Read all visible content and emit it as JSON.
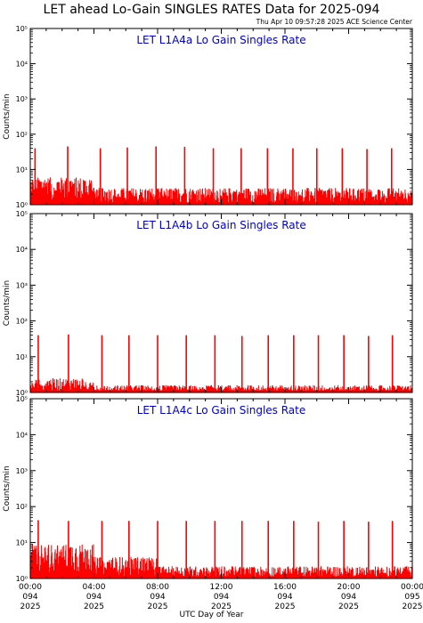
{
  "title": "LET ahead Lo-Gain SINGLES RATES Data for 2025-094",
  "timestamp": "Thu Apr 10 09:57:28 2025 ACE Science Center",
  "colors": {
    "data": "#ff0000",
    "panel_title": "#0000cc",
    "axis": "#000000"
  },
  "chart_data": [
    {
      "type": "line",
      "title": "LET L1A4a Lo Gain Singles Rate",
      "xlabel": "UTC Day of Year",
      "ylabel": "Counts/min",
      "yscale": "log",
      "ylim": [
        1,
        100000
      ],
      "xlim": [
        0,
        24
      ],
      "grid": false,
      "baseline": 1,
      "spikes": [
        {
          "t": 0.3,
          "peak": 40
        },
        {
          "t": 2.35,
          "peak": 45
        },
        {
          "t": 4.4,
          "peak": 40
        },
        {
          "t": 6.1,
          "peak": 42
        },
        {
          "t": 7.9,
          "peak": 45
        },
        {
          "t": 9.7,
          "peak": 44
        },
        {
          "t": 11.5,
          "peak": 40
        },
        {
          "t": 13.25,
          "peak": 40
        },
        {
          "t": 14.9,
          "peak": 40
        },
        {
          "t": 16.5,
          "peak": 40
        },
        {
          "t": 18.0,
          "peak": 40
        },
        {
          "t": 19.6,
          "peak": 40
        },
        {
          "t": 21.15,
          "peak": 38
        },
        {
          "t": 22.7,
          "peak": 40
        }
      ]
    },
    {
      "type": "line",
      "title": "LET L1A4b Lo Gain Singles Rate",
      "xlabel": "UTC Day of Year",
      "ylabel": "Counts/min",
      "yscale": "log",
      "ylim": [
        1,
        100000
      ],
      "xlim": [
        0,
        24
      ],
      "grid": false,
      "baseline": 1,
      "spikes": [
        {
          "t": 0.5,
          "peak": 40
        },
        {
          "t": 2.4,
          "peak": 42
        },
        {
          "t": 4.5,
          "peak": 40
        },
        {
          "t": 6.2,
          "peak": 40
        },
        {
          "t": 8.0,
          "peak": 40
        },
        {
          "t": 9.8,
          "peak": 40
        },
        {
          "t": 11.6,
          "peak": 40
        },
        {
          "t": 13.3,
          "peak": 38
        },
        {
          "t": 14.95,
          "peak": 40
        },
        {
          "t": 16.55,
          "peak": 40
        },
        {
          "t": 18.1,
          "peak": 40
        },
        {
          "t": 19.7,
          "peak": 40
        },
        {
          "t": 21.25,
          "peak": 38
        },
        {
          "t": 22.75,
          "peak": 40
        }
      ]
    },
    {
      "type": "line",
      "title": "LET L1A4c Lo Gain Singles Rate",
      "xlabel": "UTC Day of Year",
      "ylabel": "Counts/min",
      "yscale": "log",
      "ylim": [
        1,
        100000
      ],
      "xlim": [
        0,
        24
      ],
      "grid": false,
      "baseline": 1,
      "spikes": [
        {
          "t": 0.5,
          "peak": 42
        },
        {
          "t": 2.4,
          "peak": 40
        },
        {
          "t": 4.5,
          "peak": 40
        },
        {
          "t": 6.2,
          "peak": 40
        },
        {
          "t": 8.0,
          "peak": 40
        },
        {
          "t": 9.8,
          "peak": 40
        },
        {
          "t": 11.6,
          "peak": 40
        },
        {
          "t": 13.3,
          "peak": 40
        },
        {
          "t": 14.95,
          "peak": 40
        },
        {
          "t": 16.55,
          "peak": 40
        },
        {
          "t": 18.1,
          "peak": 38
        },
        {
          "t": 19.7,
          "peak": 40
        },
        {
          "t": 21.25,
          "peak": 38
        },
        {
          "t": 22.75,
          "peak": 40
        }
      ]
    }
  ],
  "y_ticks": [
    "10⁰",
    "10¹",
    "10²",
    "10³",
    "10⁴",
    "10⁵"
  ],
  "x_ticks": [
    {
      "value": 0,
      "time": "00:00",
      "doy": "094",
      "year": "2025"
    },
    {
      "value": 4,
      "time": "04:00",
      "doy": "094",
      "year": "2025"
    },
    {
      "value": 8,
      "time": "08:00",
      "doy": "094",
      "year": "2025"
    },
    {
      "value": 12,
      "time": "12:00",
      "doy": "094",
      "year": "2025"
    },
    {
      "value": 16,
      "time": "16:00",
      "doy": "094",
      "year": "2025"
    },
    {
      "value": 20,
      "time": "20:00",
      "doy": "094",
      "year": "2025"
    },
    {
      "value": 24,
      "time": "00:00",
      "doy": "095",
      "year": "2025"
    }
  ]
}
